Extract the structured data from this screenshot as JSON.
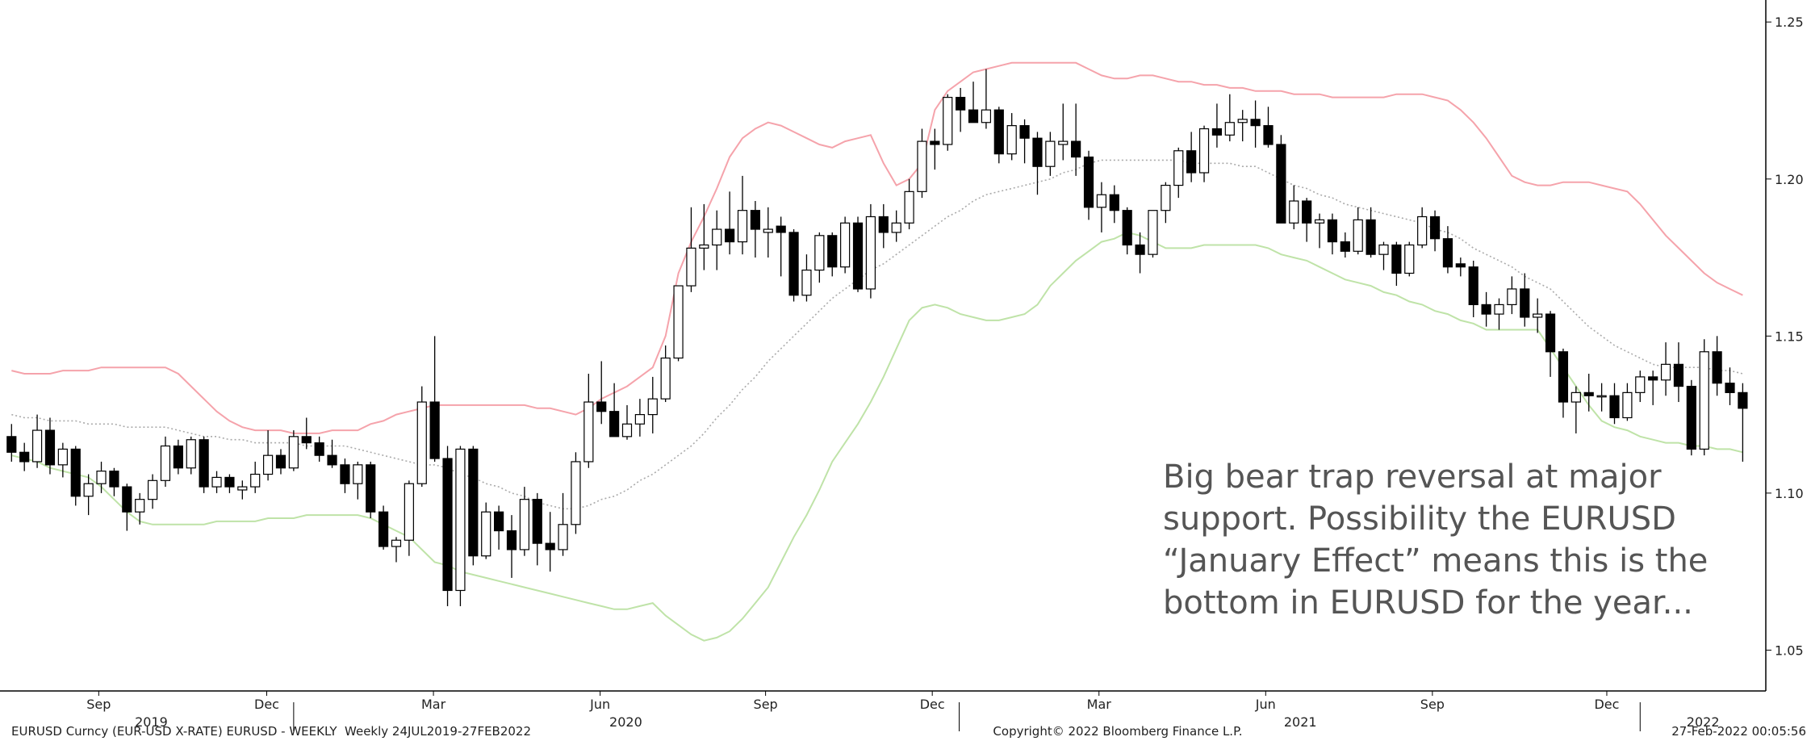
{
  "chart_data": {
    "type": "candlestick",
    "candles": [
      [
        1.118,
        1.122,
        1.11,
        1.113
      ],
      [
        1.113,
        1.116,
        1.107,
        1.11
      ],
      [
        1.11,
        1.125,
        1.108,
        1.12
      ],
      [
        1.12,
        1.124,
        1.106,
        1.109
      ],
      [
        1.109,
        1.116,
        1.105,
        1.114
      ],
      [
        1.114,
        1.115,
        1.096,
        1.099
      ],
      [
        1.099,
        1.106,
        1.093,
        1.103
      ],
      [
        1.103,
        1.11,
        1.1,
        1.107
      ],
      [
        1.107,
        1.108,
        1.099,
        1.102
      ],
      [
        1.102,
        1.103,
        1.088,
        1.094
      ],
      [
        1.094,
        1.1,
        1.09,
        1.098
      ],
      [
        1.098,
        1.106,
        1.095,
        1.104
      ],
      [
        1.104,
        1.118,
        1.102,
        1.115
      ],
      [
        1.115,
        1.117,
        1.106,
        1.108
      ],
      [
        1.108,
        1.118,
        1.106,
        1.117
      ],
      [
        1.117,
        1.118,
        1.1,
        1.102
      ],
      [
        1.102,
        1.107,
        1.1,
        1.105
      ],
      [
        1.105,
        1.106,
        1.1,
        1.102
      ],
      [
        1.101,
        1.104,
        1.098,
        1.102
      ],
      [
        1.102,
        1.11,
        1.1,
        1.106
      ],
      [
        1.106,
        1.12,
        1.104,
        1.112
      ],
      [
        1.112,
        1.114,
        1.106,
        1.108
      ],
      [
        1.108,
        1.12,
        1.107,
        1.118
      ],
      [
        1.118,
        1.124,
        1.114,
        1.116
      ],
      [
        1.116,
        1.118,
        1.11,
        1.112
      ],
      [
        1.112,
        1.117,
        1.108,
        1.109
      ],
      [
        1.109,
        1.111,
        1.1,
        1.103
      ],
      [
        1.103,
        1.11,
        1.098,
        1.109
      ],
      [
        1.109,
        1.11,
        1.092,
        1.094
      ],
      [
        1.094,
        1.096,
        1.082,
        1.083
      ],
      [
        1.083,
        1.086,
        1.078,
        1.085
      ],
      [
        1.085,
        1.104,
        1.08,
        1.103
      ],
      [
        1.103,
        1.134,
        1.102,
        1.129
      ],
      [
        1.129,
        1.15,
        1.11,
        1.111
      ],
      [
        1.111,
        1.115,
        1.064,
        1.069
      ],
      [
        1.069,
        1.115,
        1.064,
        1.114
      ],
      [
        1.114,
        1.115,
        1.077,
        1.08
      ],
      [
        1.08,
        1.097,
        1.079,
        1.094
      ],
      [
        1.094,
        1.096,
        1.082,
        1.088
      ],
      [
        1.088,
        1.093,
        1.073,
        1.082
      ],
      [
        1.082,
        1.102,
        1.08,
        1.098
      ],
      [
        1.098,
        1.1,
        1.077,
        1.084
      ],
      [
        1.084,
        1.094,
        1.075,
        1.082
      ],
      [
        1.082,
        1.1,
        1.08,
        1.09
      ],
      [
        1.09,
        1.113,
        1.087,
        1.11
      ],
      [
        1.11,
        1.138,
        1.108,
        1.129
      ],
      [
        1.129,
        1.142,
        1.122,
        1.126
      ],
      [
        1.126,
        1.135,
        1.118,
        1.118
      ],
      [
        1.118,
        1.128,
        1.117,
        1.122
      ],
      [
        1.122,
        1.13,
        1.118,
        1.125
      ],
      [
        1.125,
        1.137,
        1.119,
        1.13
      ],
      [
        1.13,
        1.147,
        1.129,
        1.143
      ],
      [
        1.143,
        1.166,
        1.142,
        1.166
      ],
      [
        1.166,
        1.191,
        1.164,
        1.178
      ],
      [
        1.178,
        1.192,
        1.171,
        1.179
      ],
      [
        1.179,
        1.19,
        1.171,
        1.184
      ],
      [
        1.184,
        1.196,
        1.176,
        1.18
      ],
      [
        1.18,
        1.201,
        1.176,
        1.19
      ],
      [
        1.19,
        1.193,
        1.175,
        1.184
      ],
      [
        1.183,
        1.191,
        1.175,
        1.184
      ],
      [
        1.185,
        1.188,
        1.169,
        1.183
      ],
      [
        1.183,
        1.184,
        1.161,
        1.163
      ],
      [
        1.163,
        1.176,
        1.161,
        1.171
      ],
      [
        1.171,
        1.183,
        1.167,
        1.182
      ],
      [
        1.182,
        1.183,
        1.169,
        1.172
      ],
      [
        1.172,
        1.188,
        1.17,
        1.186
      ],
      [
        1.186,
        1.188,
        1.164,
        1.165
      ],
      [
        1.165,
        1.192,
        1.162,
        1.188
      ],
      [
        1.188,
        1.192,
        1.178,
        1.183
      ],
      [
        1.183,
        1.19,
        1.18,
        1.186
      ],
      [
        1.186,
        1.2,
        1.184,
        1.196
      ],
      [
        1.196,
        1.216,
        1.194,
        1.212
      ],
      [
        1.212,
        1.216,
        1.203,
        1.211
      ],
      [
        1.211,
        1.227,
        1.209,
        1.226
      ],
      [
        1.226,
        1.229,
        1.215,
        1.222
      ],
      [
        1.222,
        1.231,
        1.22,
        1.218
      ],
      [
        1.218,
        1.235,
        1.216,
        1.222
      ],
      [
        1.222,
        1.223,
        1.205,
        1.208
      ],
      [
        1.208,
        1.221,
        1.206,
        1.217
      ],
      [
        1.217,
        1.219,
        1.205,
        1.213
      ],
      [
        1.213,
        1.215,
        1.195,
        1.204
      ],
      [
        1.204,
        1.215,
        1.201,
        1.212
      ],
      [
        1.211,
        1.224,
        1.206,
        1.212
      ],
      [
        1.212,
        1.224,
        1.201,
        1.207
      ],
      [
        1.207,
        1.209,
        1.187,
        1.191
      ],
      [
        1.191,
        1.199,
        1.183,
        1.195
      ],
      [
        1.195,
        1.198,
        1.186,
        1.19
      ],
      [
        1.19,
        1.191,
        1.176,
        1.179
      ],
      [
        1.179,
        1.183,
        1.17,
        1.176
      ],
      [
        1.176,
        1.19,
        1.175,
        1.19
      ],
      [
        1.19,
        1.199,
        1.186,
        1.198
      ],
      [
        1.198,
        1.21,
        1.194,
        1.209
      ],
      [
        1.209,
        1.215,
        1.199,
        1.202
      ],
      [
        1.202,
        1.217,
        1.199,
        1.216
      ],
      [
        1.216,
        1.224,
        1.21,
        1.214
      ],
      [
        1.214,
        1.227,
        1.212,
        1.218
      ],
      [
        1.218,
        1.222,
        1.212,
        1.219
      ],
      [
        1.219,
        1.225,
        1.21,
        1.217
      ],
      [
        1.217,
        1.223,
        1.21,
        1.211
      ],
      [
        1.211,
        1.214,
        1.186,
        1.186
      ],
      [
        1.186,
        1.198,
        1.184,
        1.193
      ],
      [
        1.193,
        1.194,
        1.18,
        1.186
      ],
      [
        1.186,
        1.189,
        1.178,
        1.187
      ],
      [
        1.187,
        1.189,
        1.176,
        1.18
      ],
      [
        1.18,
        1.183,
        1.175,
        1.177
      ],
      [
        1.177,
        1.191,
        1.176,
        1.187
      ],
      [
        1.187,
        1.191,
        1.175,
        1.176
      ],
      [
        1.176,
        1.18,
        1.171,
        1.179
      ],
      [
        1.179,
        1.18,
        1.166,
        1.17
      ],
      [
        1.17,
        1.18,
        1.169,
        1.179
      ],
      [
        1.179,
        1.191,
        1.178,
        1.188
      ],
      [
        1.188,
        1.19,
        1.177,
        1.181
      ],
      [
        1.181,
        1.185,
        1.17,
        1.172
      ],
      [
        1.173,
        1.175,
        1.169,
        1.172
      ],
      [
        1.172,
        1.174,
        1.156,
        1.16
      ],
      [
        1.16,
        1.164,
        1.153,
        1.157
      ],
      [
        1.157,
        1.162,
        1.152,
        1.16
      ],
      [
        1.16,
        1.169,
        1.157,
        1.165
      ],
      [
        1.165,
        1.17,
        1.153,
        1.156
      ],
      [
        1.156,
        1.162,
        1.151,
        1.157
      ],
      [
        1.157,
        1.158,
        1.137,
        1.145
      ],
      [
        1.145,
        1.146,
        1.124,
        1.129
      ],
      [
        1.129,
        1.134,
        1.119,
        1.132
      ],
      [
        1.132,
        1.138,
        1.126,
        1.131
      ],
      [
        1.131,
        1.135,
        1.126,
        1.131
      ],
      [
        1.131,
        1.135,
        1.122,
        1.124
      ],
      [
        1.124,
        1.135,
        1.123,
        1.132
      ],
      [
        1.132,
        1.139,
        1.129,
        1.137
      ],
      [
        1.137,
        1.139,
        1.128,
        1.136
      ],
      [
        1.136,
        1.148,
        1.131,
        1.141
      ],
      [
        1.141,
        1.148,
        1.129,
        1.134
      ],
      [
        1.134,
        1.136,
        1.112,
        1.114
      ],
      [
        1.114,
        1.149,
        1.112,
        1.145
      ],
      [
        1.145,
        1.15,
        1.131,
        1.135
      ],
      [
        1.135,
        1.14,
        1.128,
        1.132
      ],
      [
        1.132,
        1.135,
        1.11,
        1.127
      ]
    ],
    "bands": [
      {
        "color": "#f5a3ab",
        "style": "solid",
        "values": [
          1.139,
          1.138,
          1.138,
          1.138,
          1.139,
          1.139,
          1.139,
          1.14,
          1.14,
          1.14,
          1.14,
          1.14,
          1.14,
          1.138,
          1.134,
          1.13,
          1.126,
          1.123,
          1.121,
          1.12,
          1.12,
          1.12,
          1.119,
          1.119,
          1.119,
          1.12,
          1.12,
          1.12,
          1.122,
          1.123,
          1.125,
          1.126,
          1.127,
          1.128,
          1.128,
          1.128,
          1.128,
          1.128,
          1.128,
          1.128,
          1.128,
          1.127,
          1.127,
          1.126,
          1.125,
          1.127,
          1.13,
          1.132,
          1.134,
          1.137,
          1.14,
          1.15,
          1.17,
          1.18,
          1.188,
          1.197,
          1.207,
          1.213,
          1.216,
          1.218,
          1.217,
          1.215,
          1.213,
          1.211,
          1.21,
          1.212,
          1.213,
          1.214,
          1.205,
          1.198,
          1.2,
          1.205,
          1.222,
          1.228,
          1.231,
          1.234,
          1.235,
          1.236,
          1.237,
          1.237,
          1.237,
          1.237,
          1.237,
          1.237,
          1.235,
          1.233,
          1.232,
          1.232,
          1.233,
          1.233,
          1.232,
          1.231,
          1.231,
          1.23,
          1.23,
          1.229,
          1.229,
          1.228,
          1.228,
          1.228,
          1.227,
          1.227,
          1.227,
          1.226,
          1.226,
          1.226,
          1.226,
          1.226,
          1.227,
          1.227,
          1.227,
          1.226,
          1.225,
          1.222,
          1.218,
          1.213,
          1.207,
          1.201,
          1.199,
          1.198,
          1.198,
          1.199,
          1.199,
          1.199,
          1.198,
          1.197,
          1.196,
          1.192,
          1.187,
          1.182,
          1.178,
          1.174,
          1.17,
          1.167,
          1.165,
          1.163
        ]
      },
      {
        "color": "#aaaaaa",
        "style": "dotted",
        "values": [
          1.125,
          1.124,
          1.124,
          1.123,
          1.123,
          1.123,
          1.122,
          1.122,
          1.122,
          1.121,
          1.121,
          1.121,
          1.121,
          1.12,
          1.119,
          1.118,
          1.118,
          1.117,
          1.117,
          1.116,
          1.116,
          1.116,
          1.116,
          1.115,
          1.115,
          1.115,
          1.115,
          1.114,
          1.113,
          1.112,
          1.111,
          1.11,
          1.109,
          1.109,
          1.108,
          1.106,
          1.105,
          1.103,
          1.102,
          1.1,
          1.099,
          1.097,
          1.096,
          1.095,
          1.095,
          1.096,
          1.098,
          1.099,
          1.101,
          1.104,
          1.106,
          1.109,
          1.112,
          1.115,
          1.119,
          1.124,
          1.128,
          1.133,
          1.137,
          1.142,
          1.146,
          1.15,
          1.154,
          1.158,
          1.162,
          1.165,
          1.168,
          1.171,
          1.173,
          1.176,
          1.179,
          1.182,
          1.185,
          1.188,
          1.19,
          1.193,
          1.195,
          1.196,
          1.197,
          1.198,
          1.199,
          1.2,
          1.202,
          1.203,
          1.205,
          1.206,
          1.206,
          1.206,
          1.206,
          1.206,
          1.206,
          1.206,
          1.205,
          1.205,
          1.205,
          1.205,
          1.204,
          1.204,
          1.202,
          1.2,
          1.198,
          1.197,
          1.195,
          1.194,
          1.192,
          1.191,
          1.19,
          1.189,
          1.188,
          1.187,
          1.186,
          1.184,
          1.183,
          1.181,
          1.178,
          1.176,
          1.174,
          1.172,
          1.169,
          1.167,
          1.165,
          1.161,
          1.157,
          1.153,
          1.15,
          1.147,
          1.145,
          1.143,
          1.141,
          1.14,
          1.14,
          1.14,
          1.14,
          1.139,
          1.139,
          1.138
        ]
      },
      {
        "color": "#bfe3a8",
        "style": "solid",
        "values": [
          1.112,
          1.111,
          1.11,
          1.108,
          1.107,
          1.106,
          1.105,
          1.102,
          1.098,
          1.094,
          1.091,
          1.09,
          1.09,
          1.09,
          1.09,
          1.09,
          1.091,
          1.091,
          1.091,
          1.091,
          1.092,
          1.092,
          1.092,
          1.093,
          1.093,
          1.093,
          1.093,
          1.093,
          1.092,
          1.09,
          1.088,
          1.086,
          1.082,
          1.078,
          1.077,
          1.075,
          1.074,
          1.073,
          1.072,
          1.071,
          1.07,
          1.069,
          1.068,
          1.067,
          1.066,
          1.065,
          1.064,
          1.063,
          1.063,
          1.064,
          1.065,
          1.061,
          1.058,
          1.055,
          1.053,
          1.054,
          1.056,
          1.06,
          1.065,
          1.07,
          1.078,
          1.086,
          1.093,
          1.101,
          1.11,
          1.116,
          1.122,
          1.129,
          1.137,
          1.146,
          1.155,
          1.159,
          1.16,
          1.159,
          1.157,
          1.156,
          1.155,
          1.155,
          1.156,
          1.157,
          1.16,
          1.166,
          1.17,
          1.174,
          1.177,
          1.18,
          1.181,
          1.183,
          1.182,
          1.18,
          1.178,
          1.178,
          1.178,
          1.179,
          1.179,
          1.179,
          1.179,
          1.179,
          1.178,
          1.176,
          1.175,
          1.174,
          1.172,
          1.17,
          1.168,
          1.167,
          1.166,
          1.164,
          1.163,
          1.161,
          1.16,
          1.158,
          1.157,
          1.155,
          1.154,
          1.152,
          1.152,
          1.152,
          1.152,
          1.152,
          1.146,
          1.14,
          1.134,
          1.128,
          1.123,
          1.121,
          1.12,
          1.118,
          1.117,
          1.116,
          1.116,
          1.115,
          1.115,
          1.114,
          1.114,
          1.113
        ]
      }
    ],
    "xlim": [
      -0.9,
      136.8
    ],
    "ylim": [
      1.037,
      1.257
    ],
    "yticks": [
      1.05,
      {
        "value": 1.1,
        "label": "1.10"
      },
      1.15,
      {
        "value": 1.2,
        "label": "1.20"
      },
      1.25
    ],
    "xticks": [
      {
        "value": 6.8,
        "label": "Sep"
      },
      {
        "value": 19.9,
        "label": "Dec"
      },
      {
        "value": 32.9,
        "label": "Mar"
      },
      {
        "value": 45.9,
        "label": "Jun"
      },
      {
        "value": 58.8,
        "label": "Sep"
      },
      {
        "value": 71.8,
        "label": "Dec"
      },
      {
        "value": 84.8,
        "label": "Mar"
      },
      {
        "value": 97.8,
        "label": "Jun"
      },
      {
        "value": 110.8,
        "label": "Sep"
      },
      {
        "value": 124.4,
        "label": "Dec"
      }
    ],
    "year_labels": [
      {
        "value": 10.9,
        "label": "2019"
      },
      {
        "value": 47.9,
        "label": "2020"
      },
      {
        "value": 100.5,
        "label": "2021"
      },
      {
        "value": 131.9,
        "label": "2022"
      }
    ],
    "year_separators": [
      22,
      73.9,
      127
    ],
    "annotation": [
      "Big bear trap reversal at major",
      "support. Possibility the EURUSD",
      "“January Effect” means this is the",
      "bottom in EURUSD for the year..."
    ],
    "footer": {
      "left": "EURUSD Curncy (EUR-USD X-RATE) EURUSD - WEEKLY  Weekly 24JUL2019-27FEB2022",
      "center": "Copyright© 2022 Bloomberg Finance L.P.",
      "right": "27-Feb-2022 00:05:56"
    }
  }
}
